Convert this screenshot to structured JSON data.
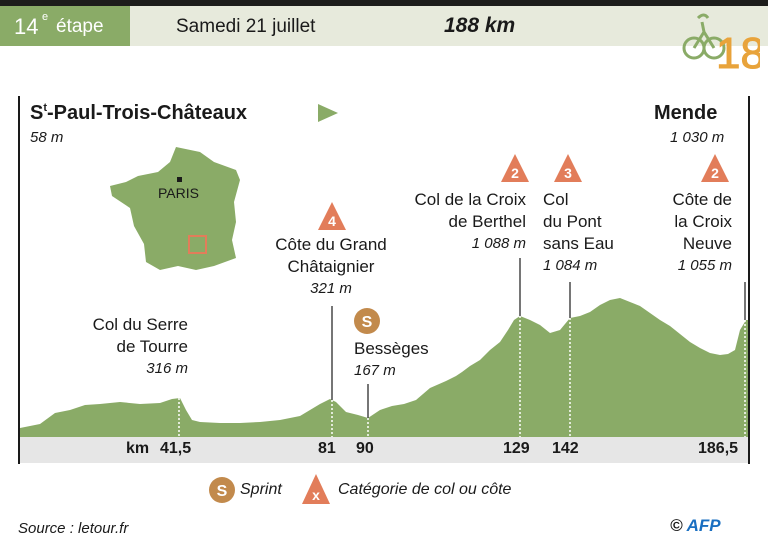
{
  "header": {
    "stage_number": "14",
    "stage_sup": "e",
    "stage_word": "étape",
    "date": "Samedi 21 juillet",
    "distance": "188 km",
    "logo_text": "18"
  },
  "start": {
    "name_prefix": "S",
    "name_sup": "t",
    "name_rest": "-Paul-Trois-Châteaux",
    "altitude": "58 m"
  },
  "finish": {
    "name": "Mende",
    "altitude": "1 030 m"
  },
  "map": {
    "city": "PARIS"
  },
  "climbs": [
    {
      "id": "grand-chataignier",
      "line1": "Côte du Grand",
      "line2": "Châtaignier",
      "altitude": "321 m",
      "category": "4",
      "km": 81
    },
    {
      "id": "croix-de-berthel",
      "line1": "Col de la Croix",
      "line2": "de Berthel",
      "altitude": "1 088 m",
      "category": "2",
      "km": 129
    },
    {
      "id": "pont-sans-eau",
      "line1": "Col",
      "line2": "du Pont",
      "line3": "sans Eau",
      "altitude": "1 084 m",
      "category": "3",
      "km": 142
    },
    {
      "id": "croix-neuve",
      "line1": "Côte de",
      "line2": "la Croix",
      "line3": "Neuve",
      "altitude": "1 055 m",
      "category": "2",
      "km": 186.5
    }
  ],
  "passes": [
    {
      "id": "serre-de-tourre",
      "line1": "Col du Serre",
      "line2": "de Tourre",
      "altitude": "316 m",
      "km": 41.5
    }
  ],
  "sprint": {
    "name": "Bessèges",
    "altitude": "167 m",
    "symbol": "S",
    "km": 90
  },
  "km_axis": {
    "label": "km",
    "ticks": [
      "41,5",
      "81",
      "90",
      "129",
      "142",
      "186,5"
    ]
  },
  "legend": {
    "sprint_symbol": "S",
    "sprint_label": "Sprint",
    "category_symbol": "x",
    "category_label": "Catégorie de col ou côte"
  },
  "source": "Source : letour.fr",
  "credit": {
    "copyright": "©",
    "agency": "AFP"
  },
  "colors": {
    "profile": "#8aab67",
    "climb_marker": "#e27d5a",
    "sprint_marker": "#c28a4c",
    "header_bg": "#e7eadc"
  }
}
